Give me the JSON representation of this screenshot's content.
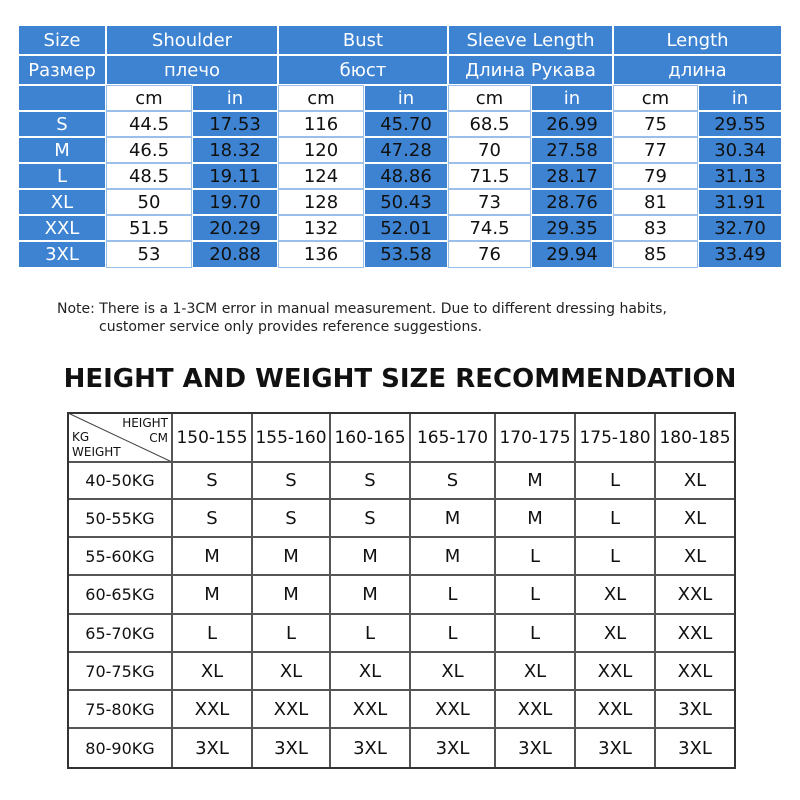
{
  "size_table": {
    "header_en": [
      "Size",
      "Shoulder",
      "Bust",
      "Sleeve Length",
      "Length"
    ],
    "header_ru": [
      "Размер",
      "плечо",
      "бюст",
      "Длина Рукава",
      "длина"
    ],
    "units": [
      "cm",
      "in"
    ],
    "rows": [
      [
        "S",
        "44.5",
        "17.53",
        "116",
        "45.70",
        "68.5",
        "26.99",
        "75",
        "29.55"
      ],
      [
        "M",
        "46.5",
        "18.32",
        "120",
        "47.28",
        "70",
        "27.58",
        "77",
        "30.34"
      ],
      [
        "L",
        "48.5",
        "19.11",
        "124",
        "48.86",
        "71.5",
        "28.17",
        "79",
        "31.13"
      ],
      [
        "XL",
        "50",
        "19.70",
        "128",
        "50.43",
        "73",
        "28.76",
        "81",
        "31.91"
      ],
      [
        "XXL",
        "51.5",
        "20.29",
        "132",
        "52.01",
        "74.5",
        "29.35",
        "83",
        "32.70"
      ],
      [
        "3XL",
        "53",
        "20.88",
        "136",
        "53.58",
        "76",
        "29.94",
        "85",
        "33.49"
      ]
    ]
  },
  "note": [
    "Note: There is a 1-3CM error in manual measurement. Due to different dressing habits,",
    "customer service only provides reference suggestions."
  ],
  "recommendation": {
    "title": "HEIGHT AND WEIGHT SIZE RECOMMENDATION",
    "corner": {
      "height": "HEIGHT",
      "cm": "CM",
      "kg": "KG",
      "weight": "WEIGHT"
    },
    "heights": [
      "150-155",
      "155-160",
      "160-165",
      "165-170",
      "170-175",
      "175-180",
      "180-185"
    ],
    "rows": [
      {
        "weight": "40-50KG",
        "sizes": [
          "S",
          "S",
          "S",
          "S",
          "M",
          "L",
          "XL"
        ]
      },
      {
        "weight": "50-55KG",
        "sizes": [
          "S",
          "S",
          "S",
          "M",
          "M",
          "L",
          "XL"
        ]
      },
      {
        "weight": "55-60KG",
        "sizes": [
          "M",
          "M",
          "M",
          "M",
          "L",
          "L",
          "XL"
        ]
      },
      {
        "weight": "60-65KG",
        "sizes": [
          "M",
          "M",
          "M",
          "L",
          "L",
          "XL",
          "XXL"
        ]
      },
      {
        "weight": "65-70KG",
        "sizes": [
          "L",
          "L",
          "L",
          "L",
          "L",
          "XL",
          "XXL"
        ]
      },
      {
        "weight": "70-75KG",
        "sizes": [
          "XL",
          "XL",
          "XL",
          "XL",
          "XL",
          "XXL",
          "XXL"
        ]
      },
      {
        "weight": "75-80KG",
        "sizes": [
          "XXL",
          "XXL",
          "XXL",
          "XXL",
          "XXL",
          "XXL",
          "3XL"
        ]
      },
      {
        "weight": "80-90KG",
        "sizes": [
          "3XL",
          "3XL",
          "3XL",
          "3XL",
          "3XL",
          "3XL",
          "3XL"
        ]
      }
    ]
  }
}
